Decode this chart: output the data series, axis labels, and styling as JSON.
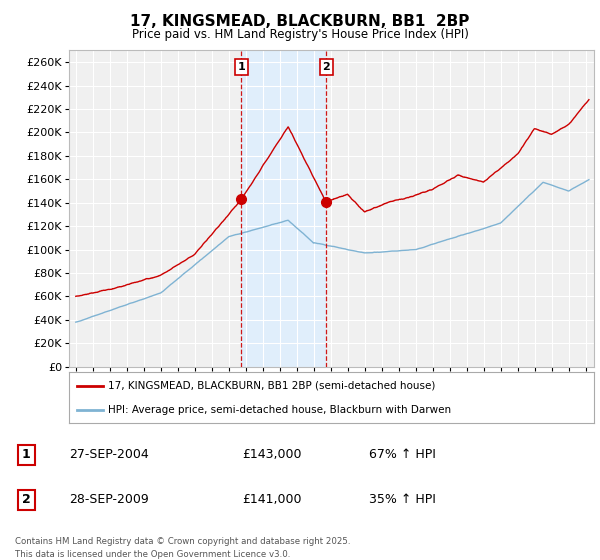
{
  "title": "17, KINGSMEAD, BLACKBURN, BB1  2BP",
  "subtitle": "Price paid vs. HM Land Registry's House Price Index (HPI)",
  "ylim": [
    0,
    270000
  ],
  "ytick_vals": [
    0,
    20000,
    40000,
    60000,
    80000,
    100000,
    120000,
    140000,
    160000,
    180000,
    200000,
    220000,
    240000,
    260000
  ],
  "sale1_date": 2004.75,
  "sale1_price": 143000,
  "sale2_date": 2009.75,
  "sale2_price": 141000,
  "red_line_color": "#cc0000",
  "blue_line_color": "#7fb3d3",
  "shaded_region_color": "#ddeeff",
  "vline_color": "#cc0000",
  "legend_label_red": "17, KINGSMEAD, BLACKBURN, BB1 2BP (semi-detached house)",
  "legend_label_blue": "HPI: Average price, semi-detached house, Blackburn with Darwen",
  "table_row1": [
    "1",
    "27-SEP-2004",
    "£143,000",
    "67% ↑ HPI"
  ],
  "table_row2": [
    "2",
    "28-SEP-2009",
    "£141,000",
    "35% ↑ HPI"
  ],
  "footnote": "Contains HM Land Registry data © Crown copyright and database right 2025.\nThis data is licensed under the Open Government Licence v3.0.",
  "background_color": "#ffffff",
  "plot_bg_color": "#f0f0f0"
}
